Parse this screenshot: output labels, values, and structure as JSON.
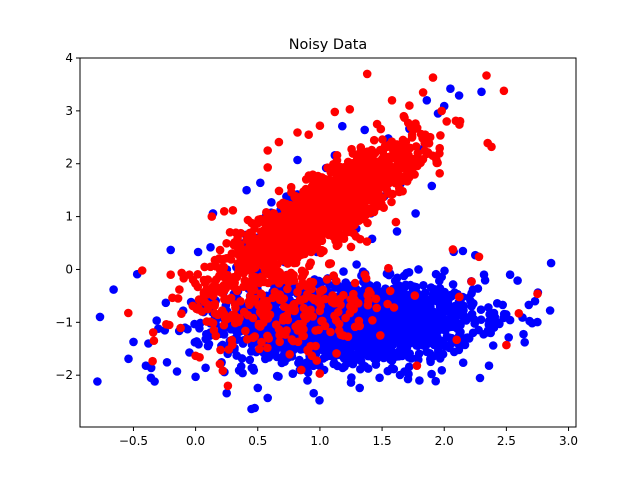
{
  "chart_data": {
    "type": "scatter",
    "title": "Noisy Data",
    "xlabel": "",
    "ylabel": "",
    "xlim": [
      -0.93,
      3.06
    ],
    "ylim": [
      -2.98,
      4.0
    ],
    "xticks": [
      -0.5,
      0.0,
      0.5,
      1.0,
      1.5,
      2.0,
      2.5,
      3.0
    ],
    "xtick_labels": [
      "−0.5",
      "0.0",
      "0.5",
      "1.0",
      "1.5",
      "2.0",
      "2.5",
      "3.0"
    ],
    "yticks": [
      -2,
      -1,
      0,
      1,
      2,
      3,
      4
    ],
    "ytick_labels": [
      "−2",
      "−1",
      "0",
      "1",
      "2",
      "3",
      "4"
    ],
    "grid": false,
    "series": [
      {
        "color": "#0000ff",
        "points": [
          [
            -0.79,
            -2.12
          ],
          [
            -0.66,
            -0.38
          ],
          [
            -0.54,
            -1.69
          ],
          [
            -0.5,
            -1.37
          ],
          [
            -0.47,
            -0.09
          ],
          [
            -0.4,
            -1.82
          ],
          [
            -0.38,
            -1.4
          ],
          [
            -0.36,
            -2.05
          ],
          [
            -0.33,
            -2.12
          ],
          [
            -0.3,
            -1.12
          ],
          [
            -0.24,
            -0.63
          ],
          [
            -0.2,
            0.37
          ],
          [
            -0.15,
            -1.93
          ],
          [
            -0.1,
            -0.78
          ],
          [
            -0.05,
            -1.57
          ],
          [
            0.0,
            -2.03
          ],
          [
            0.02,
            0.33
          ],
          [
            0.08,
            -1.86
          ],
          [
            0.12,
            0.42
          ],
          [
            0.14,
            1.06
          ],
          [
            0.25,
            -2.34
          ],
          [
            0.35,
            -1.91
          ],
          [
            0.41,
            1.5
          ],
          [
            0.45,
            -2.64
          ],
          [
            0.5,
            -2.24
          ],
          [
            0.52,
            1.64
          ],
          [
            0.58,
            -2.43
          ],
          [
            0.6,
            1.02
          ],
          [
            0.73,
            1.38
          ],
          [
            0.82,
            2.07
          ],
          [
            0.9,
            -2.1
          ],
          [
            0.95,
            -2.34
          ],
          [
            1.05,
            1.92
          ],
          [
            1.12,
            2.16
          ],
          [
            1.18,
            2.71
          ],
          [
            1.25,
            -2.14
          ],
          [
            1.32,
            -2.24
          ],
          [
            1.36,
            2.64
          ],
          [
            1.42,
            0.58
          ],
          [
            1.48,
            -2.05
          ],
          [
            1.55,
            2.48
          ],
          [
            1.62,
            0.72
          ],
          [
            1.68,
            -1.93
          ],
          [
            1.72,
            2.66
          ],
          [
            1.77,
            1.06
          ],
          [
            1.8,
            -2.1
          ],
          [
            1.86,
            3.2
          ],
          [
            1.9,
            1.58
          ],
          [
            1.95,
            2.95
          ],
          [
            2.0,
            3.09
          ],
          [
            2.05,
            3.42
          ],
          [
            2.08,
            -1.56
          ],
          [
            2.12,
            3.29
          ],
          [
            2.15,
            0.35
          ],
          [
            2.2,
            -0.53
          ],
          [
            2.25,
            0.27
          ],
          [
            2.3,
            3.36
          ],
          [
            2.32,
            -0.1
          ],
          [
            2.36,
            -1.82
          ],
          [
            2.42,
            -0.99
          ],
          [
            2.47,
            -0.67
          ],
          [
            2.53,
            -0.1
          ],
          [
            2.59,
            -0.21
          ],
          [
            2.63,
            -0.91
          ],
          [
            2.68,
            -0.67
          ],
          [
            2.73,
            -0.6
          ],
          [
            2.86,
            0.12
          ],
          [
            0.3,
            -0.9
          ],
          [
            0.7,
            -1.2
          ],
          [
            1.0,
            -0.5
          ],
          [
            1.4,
            -0.3
          ],
          [
            1.9,
            -0.8
          ],
          [
            2.4,
            -1.1
          ],
          [
            0.1,
            -1.45
          ],
          [
            0.65,
            -0.65
          ]
        ],
        "clusters": [
          {
            "mx": 1.25,
            "my": -1.0,
            "sx": 0.5,
            "sy": 0.38,
            "rho": 0.05,
            "n": 1900
          },
          {
            "mx": 0.95,
            "my": 1.0,
            "sx": 0.3,
            "sy": 0.42,
            "rho": 0.82,
            "n": 280
          }
        ]
      },
      {
        "color": "#ff0000",
        "points": [
          [
            -0.43,
            -0.02
          ],
          [
            -0.2,
            -0.1
          ],
          [
            -0.13,
            -0.38
          ],
          [
            -0.05,
            -0.1
          ],
          [
            0.02,
            -0.72
          ],
          [
            0.12,
            0.05
          ],
          [
            0.13,
            1.0
          ],
          [
            0.23,
            1.1
          ],
          [
            0.3,
            1.12
          ],
          [
            0.35,
            0.0
          ],
          [
            0.45,
            0.88
          ],
          [
            0.52,
            -1.08
          ],
          [
            0.58,
            2.25
          ],
          [
            0.58,
            1.93
          ],
          [
            0.67,
            2.41
          ],
          [
            0.73,
            -0.13
          ],
          [
            0.82,
            2.59
          ],
          [
            0.91,
            2.55
          ],
          [
            1.0,
            2.72
          ],
          [
            1.12,
            2.98
          ],
          [
            1.24,
            3.03
          ],
          [
            1.38,
            3.7
          ],
          [
            1.46,
            2.75
          ],
          [
            1.58,
            3.2
          ],
          [
            1.68,
            2.87
          ],
          [
            1.72,
            3.1
          ],
          [
            1.83,
            3.35
          ],
          [
            1.91,
            3.63
          ],
          [
            1.98,
            3.0
          ],
          [
            2.02,
            2.8
          ],
          [
            2.07,
            0.38
          ],
          [
            2.12,
            -0.52
          ],
          [
            2.22,
            -0.23
          ],
          [
            2.28,
            0.24
          ],
          [
            2.35,
            2.39
          ],
          [
            2.38,
            2.32
          ],
          [
            2.48,
            3.38
          ],
          [
            2.5,
            -1.43
          ],
          [
            2.6,
            -0.83
          ],
          [
            2.75,
            -0.46
          ],
          [
            0.26,
            -2.2
          ],
          [
            0.85,
            -1.9
          ],
          [
            1.78,
            -1.82
          ],
          [
            1.36,
            -0.1
          ],
          [
            2.1,
            -1.33
          ]
        ],
        "clusters": [
          {
            "mx": 1.0,
            "my": 1.05,
            "sx": 0.37,
            "sy": 0.62,
            "rho": 0.87,
            "n": 1750
          },
          {
            "mx": 0.75,
            "my": -0.8,
            "sx": 0.42,
            "sy": 0.42,
            "rho": 0.1,
            "n": 240
          }
        ]
      }
    ]
  }
}
